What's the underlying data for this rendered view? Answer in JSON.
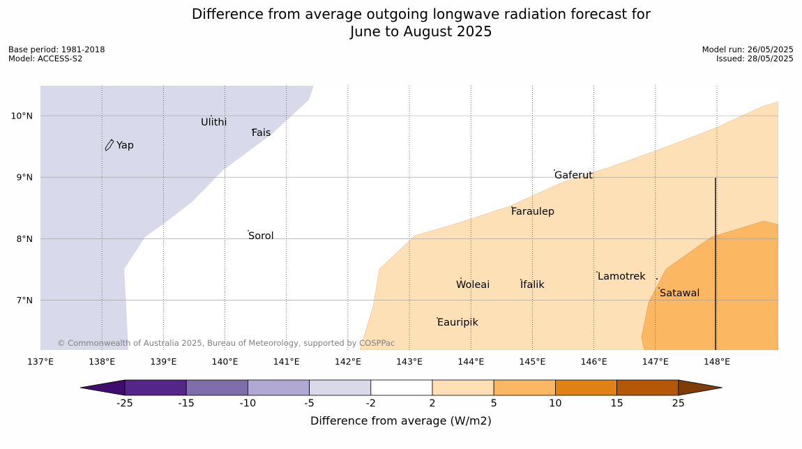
{
  "title_line1": "Difference from average outgoing longwave radiation forecast for",
  "title_line2": "June to August 2025",
  "meta_left": [
    "Base period: 1981-2018",
    "Model: ACCESS-S2"
  ],
  "meta_right": [
    "Model run: 26/05/2025",
    "Issued: 28/05/2025"
  ],
  "map": {
    "lon_ticks": [
      "137°E",
      "138°E",
      "139°E",
      "140°E",
      "141°E",
      "142°E",
      "143°E",
      "144°E",
      "145°E",
      "146°E",
      "147°E",
      "148°E"
    ],
    "lat_ticks": [
      "10°N",
      "9°N",
      "8°N",
      "7°N"
    ],
    "places": [
      {
        "name": "Ulithi"
      },
      {
        "name": "Fais"
      },
      {
        "name": "Yap"
      },
      {
        "name": "Gaferut"
      },
      {
        "name": "Faraulep"
      },
      {
        "name": "Sorol"
      },
      {
        "name": "Lamotrek"
      },
      {
        "name": "Woleai"
      },
      {
        "name": "Ifalik"
      },
      {
        "name": "Satawal"
      },
      {
        "name": "Eauripik"
      }
    ],
    "copyright": "© Commonwealth of Australia 2025, Bureau of Meteorology, supported by COSPPac",
    "colors": {
      "neg_2_5": "#d8d9ea",
      "pos_2_5": "#fde0b6",
      "pos_5_10": "#fbb761"
    }
  },
  "colorbar": {
    "labels": [
      "-25",
      "-15",
      "-10",
      "-5",
      "-2",
      "2",
      "5",
      "10",
      "15",
      "25"
    ],
    "colors": [
      "#3f0d6b",
      "#542689",
      "#7e6ea9",
      "#b1a9d2",
      "#d9d9ea",
      "#ffffff",
      "#fde0b6",
      "#fbb761",
      "#e08213",
      "#b35807",
      "#7f3b08"
    ],
    "title": "Difference from average (W/m2)"
  }
}
